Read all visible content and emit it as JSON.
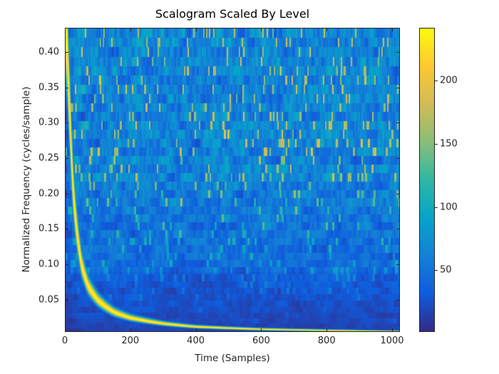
{
  "chart_data": {
    "type": "heatmap",
    "title": "Scalogram Scaled By Level",
    "xlabel": "Time (Samples)",
    "ylabel": "Normalized Frequency (cycles/sample)",
    "xlim": [
      0,
      1024
    ],
    "ylim": [
      0.0047,
      0.434
    ],
    "xticks": [
      0,
      200,
      400,
      600,
      800,
      1000
    ],
    "xtick_labels": [
      "0",
      "200",
      "400",
      "600",
      "800",
      "1000"
    ],
    "yticks": [
      0.05,
      0.1,
      0.15,
      0.2,
      0.25,
      0.3,
      0.35,
      0.4
    ],
    "ytick_labels": [
      "0.05",
      "0.10",
      "0.15",
      "0.20",
      "0.25",
      "0.30",
      "0.35",
      "0.40"
    ],
    "colorbar": {
      "clim": [
        1,
        242
      ],
      "ticks": [
        50,
        100,
        150,
        200
      ],
      "tick_labels": [
        "50",
        "100",
        "150",
        "200"
      ],
      "colormap": [
        "#352a87",
        "#0f5cdd",
        "#1481d6",
        "#06a4ca",
        "#2eb7a4",
        "#87bf77",
        "#d1bb59",
        "#fec832",
        "#f9fb0e"
      ]
    },
    "ridge": {
      "description": "chirp ridge",
      "points": [
        [
          5,
          0.42
        ],
        [
          15,
          0.3
        ],
        [
          25,
          0.2
        ],
        [
          35,
          0.15
        ],
        [
          50,
          0.1
        ],
        [
          70,
          0.07
        ],
        [
          100,
          0.05
        ],
        [
          150,
          0.033
        ],
        [
          200,
          0.025
        ],
        [
          300,
          0.017
        ],
        [
          400,
          0.0125
        ],
        [
          600,
          0.009
        ],
        [
          1000,
          0.006
        ]
      ],
      "magnitude": 240
    },
    "background_magnitude_range": [
      10,
      180
    ]
  }
}
